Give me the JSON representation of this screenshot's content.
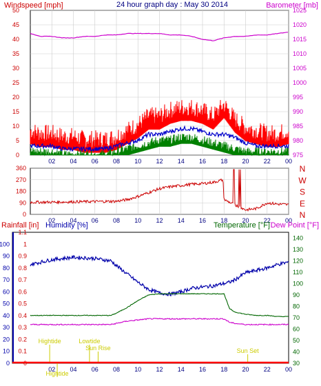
{
  "title": "24 hour graph day : May 30 2014",
  "colors": {
    "wind": "#ff0000",
    "gust": "#ff0000",
    "avgwind": "#0000cc",
    "green": "#008000",
    "baro": "#cc00cc",
    "dir": "#cc0000",
    "humidity": "#0000aa",
    "temp": "#006600",
    "dew": "#cc00cc",
    "rain": "#ff0000",
    "astro": "#cccc00",
    "axisLeft": "#cc0000",
    "axisRight": "#cc00cc",
    "axisBlue": "#0000aa",
    "axisGreen": "#006600"
  },
  "chart_data": [
    {
      "type": "line",
      "title": "24 hour graph day : May 30 2014",
      "ylabel": "Windspeed [mph]",
      "y2label": "Barometer [mb]",
      "x_ticks": [
        "02",
        "04",
        "06",
        "08",
        "10",
        "12",
        "14",
        "16",
        "18",
        "20",
        "22",
        "00"
      ],
      "ylim": [
        0,
        50
      ],
      "y_ticks": [
        "0",
        "5",
        "10",
        "15",
        "20",
        "25",
        "30",
        "35",
        "40",
        "45",
        "50"
      ],
      "y2lim": [
        975,
        1025
      ],
      "y2_ticks": [
        "975",
        "980",
        "985",
        "990",
        "995",
        "1000",
        "1005",
        "1010",
        "1015",
        "1020",
        "1025"
      ],
      "grid": true,
      "x": [
        0,
        1,
        2,
        3,
        4,
        5,
        6,
        7,
        8,
        9,
        10,
        11,
        12,
        13,
        14,
        15,
        16,
        17,
        18,
        19,
        20,
        21,
        22,
        23,
        24
      ],
      "series": [
        {
          "values": [
            8,
            7,
            7,
            6,
            6,
            5,
            5,
            5,
            6,
            8,
            10,
            13,
            13,
            15,
            16,
            16,
            15,
            13,
            17,
            12,
            9,
            8,
            7,
            7,
            8
          ]
        },
        {
          "values": [
            3,
            3,
            3,
            2,
            2,
            2,
            2,
            2,
            3,
            4,
            5,
            7,
            7,
            8,
            9,
            9,
            8,
            7,
            7,
            6,
            4,
            3,
            3,
            3,
            3
          ]
        },
        {
          "values": [
            1,
            1,
            1,
            0,
            0,
            0,
            0,
            0,
            1,
            2,
            3,
            4,
            5,
            5,
            6,
            6,
            5,
            4,
            3,
            2,
            1,
            1,
            1,
            1,
            1
          ]
        },
        {
          "values": [
            1017,
            1016,
            1016,
            1015.5,
            1015.5,
            1016,
            1016,
            1016.5,
            1016.5,
            1017,
            1017,
            1017,
            1017,
            1016.5,
            1016.5,
            1016,
            1015,
            1014.5,
            1015.5,
            1016,
            1016,
            1016.5,
            1016.5,
            1017,
            1017.5
          ]
        }
      ]
    },
    {
      "type": "line",
      "x_ticks": [
        "02",
        "04",
        "06",
        "08",
        "10",
        "12",
        "14",
        "16",
        "18",
        "20",
        "22",
        "00"
      ],
      "ylim": [
        0,
        360
      ],
      "y_ticks": [
        "0",
        "90",
        "180",
        "270",
        "360"
      ],
      "y2_ticks": [
        "N",
        "E",
        "S",
        "W",
        "N"
      ],
      "grid": true,
      "x": [
        0,
        2,
        4,
        6,
        8,
        9,
        10,
        11,
        12,
        13,
        14,
        15,
        16,
        17,
        17.9,
        18,
        19,
        20,
        21,
        22,
        23,
        24
      ],
      "series": [
        {
          "values": [
            95,
            95,
            98,
            100,
            102,
            115,
            140,
            170,
            200,
            215,
            225,
            235,
            240,
            250,
            270,
            115,
            75,
            35,
            45,
            90,
            80,
            75
          ]
        }
      ]
    },
    {
      "type": "line",
      "ylabel": "Rainfall [in]",
      "ylabel2": "Humidity [%]",
      "y2label": "Temperature [°F]",
      "y2label2": "Dew Point [°F]",
      "x_ticks": [
        "02",
        "04",
        "06",
        "08",
        "10",
        "12",
        "14",
        "16",
        "18",
        "20",
        "22",
        "00"
      ],
      "ylim": [
        0,
        1.1
      ],
      "y_ticks": [
        "0",
        "0.1",
        "0.2",
        "0.3",
        "0.4",
        "0.5",
        "0.6",
        "0.7",
        "0.8",
        "0.9",
        "1",
        "1.1"
      ],
      "y_ticks_hum": [
        "0",
        "10",
        "20",
        "30",
        "40",
        "50",
        "60",
        "70",
        "80",
        "90",
        "100"
      ],
      "y2lim": [
        30,
        145
      ],
      "y2_ticks": [
        "30",
        "40",
        "50",
        "60",
        "70",
        "80",
        "90",
        "100",
        "110",
        "120",
        "130",
        "140"
      ],
      "grid": false,
      "x": [
        0,
        2,
        4,
        6,
        7.5,
        8,
        9,
        10,
        11,
        12,
        13,
        14,
        15,
        16,
        17,
        18,
        18.5,
        19,
        20,
        21,
        22,
        23,
        24
      ],
      "series": [
        {
          "values": [
            83,
            87,
            89,
            88,
            86,
            82,
            75,
            68,
            62,
            59,
            58,
            60,
            63,
            64,
            65,
            67,
            68,
            70,
            76,
            78,
            80,
            83,
            85
          ]
        },
        {
          "values": [
            72,
            72,
            72,
            72,
            72,
            74,
            79,
            85,
            90,
            91,
            91,
            91,
            91,
            91,
            91,
            91,
            78,
            75,
            73,
            72,
            72,
            71,
            71
          ]
        },
        {
          "values": [
            64,
            64,
            64,
            64,
            64,
            65,
            67,
            68,
            69,
            69,
            69,
            69,
            69,
            69,
            69,
            69,
            66,
            65,
            64,
            64,
            64,
            64,
            64
          ]
        },
        {
          "values": [
            0,
            0,
            0,
            0,
            0,
            0,
            0,
            0,
            0,
            0,
            0,
            0,
            0,
            0,
            0,
            0,
            0,
            0,
            0,
            0,
            0,
            0,
            0
          ]
        }
      ],
      "annotations": [
        {
          "text": "Sun Rise",
          "x": 6.3
        },
        {
          "text": "Sun Set",
          "x": 20.2
        },
        {
          "text": "Hightide",
          "x": 1.8
        },
        {
          "text": "Lowtide",
          "x": 5.5
        },
        {
          "text": "Hightide",
          "x": 2.5
        }
      ]
    }
  ]
}
